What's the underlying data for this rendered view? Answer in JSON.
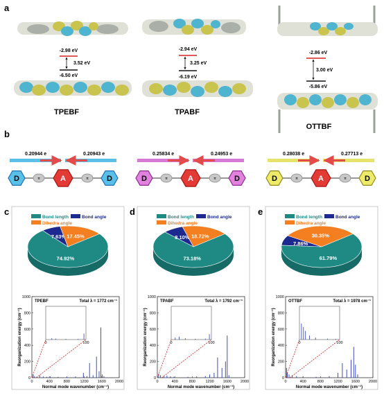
{
  "panel_labels": {
    "a": "a",
    "b": "b",
    "c": "c",
    "d": "d",
    "e": "e"
  },
  "molecules": [
    {
      "name": "TPEBF",
      "lumo": "-2.98 eV",
      "gap": "3.52 eV",
      "homo": "-6.50 eV",
      "charge_left": "0.20944 e",
      "charge_right": "0.20943 e",
      "arrow_color": "#5bc0e8",
      "donor_fill": "#5bc0e8",
      "donor_stroke": "#1f6fb5"
    },
    {
      "name": "TPABF",
      "lumo": "-2.94 eV",
      "gap": "3.25 eV",
      "homo": "-6.19 eV",
      "charge_left": "0.25834 e",
      "charge_right": "0.24953 e",
      "arrow_color": "#d77ad6",
      "donor_fill": "#e082de",
      "donor_stroke": "#8e2a8d"
    },
    {
      "name": "OTTBF",
      "lumo": "-2.86 eV",
      "gap": "3.00 eV",
      "homo": "-5.86 eV",
      "charge_left": "0.28038 e",
      "charge_right": "0.27713 e",
      "arrow_color": "#e6e36a",
      "donor_fill": "#eeea6a",
      "donor_stroke": "#8f8a18"
    }
  ],
  "scheme_labels": {
    "donor": "D",
    "acceptor": "A",
    "pi": "π"
  },
  "legend": {
    "bond_length": "Bond length",
    "bond_angle": "Bond angle",
    "dihedral": "Dihedra angle"
  },
  "colors": {
    "bond_length": "#1f8a84",
    "bond_angle": "#1c2a8f",
    "dihedral": "#f47f20",
    "lumo_line": "#d62020",
    "red_arrow": "#e34a4a",
    "acceptor": "#e23b36"
  },
  "chart_data": [
    {
      "type": "pie",
      "panel": "c",
      "title": "",
      "slices": [
        {
          "name": "Bond length",
          "value": 74.92,
          "label": "74.92%"
        },
        {
          "name": "Bond angle",
          "value": 7.63,
          "label": "7.63%"
        },
        {
          "name": "Dihedra angle",
          "value": 17.45,
          "label": "17.45%"
        }
      ]
    },
    {
      "type": "pie",
      "panel": "d",
      "title": "",
      "slices": [
        {
          "name": "Bond length",
          "value": 73.18,
          "label": "73.18%"
        },
        {
          "name": "Bond angle",
          "value": 8.1,
          "label": "8.10%"
        },
        {
          "name": "Dihedra angle",
          "value": 18.72,
          "label": "18.72%"
        }
      ]
    },
    {
      "type": "pie",
      "panel": "e",
      "title": "",
      "slices": [
        {
          "name": "Bond length",
          "value": 61.79,
          "label": "61.79%"
        },
        {
          "name": "Bond angle",
          "value": 7.86,
          "label": "7.86%"
        },
        {
          "name": "Dihedra angle",
          "value": 30.35,
          "label": "30.35%"
        }
      ]
    },
    {
      "type": "bar",
      "panel": "c",
      "molecule": "TPEBF",
      "total": "Total λ = 1772 cm⁻¹",
      "xlabel": "Normal mode wavenumber (cm⁻¹)",
      "ylabel": "Reorganization energy (cm⁻¹)",
      "xlim": [
        0,
        2000
      ],
      "ylim": [
        0,
        1000
      ],
      "xticks": [
        "0",
        "400",
        "800",
        "1200",
        "1600",
        "2000"
      ],
      "yticks": [
        "0",
        "200",
        "400",
        "600",
        "800",
        "1000"
      ],
      "inset": {
        "xlim": [
          0,
          100
        ],
        "xticks": [
          "0",
          "100"
        ],
        "x": [
          15,
          25,
          50,
          80,
          95
        ],
        "y": [
          40,
          30,
          20,
          20,
          180
        ]
      },
      "x": [
        30,
        60,
        120,
        180,
        260,
        340,
        420,
        600,
        800,
        1000,
        1180,
        1260,
        1320,
        1400,
        1480,
        1540,
        1580,
        1610,
        1650
      ],
      "y": [
        40,
        20,
        15,
        30,
        15,
        10,
        15,
        10,
        10,
        15,
        60,
        20,
        180,
        30,
        260,
        80,
        620,
        40,
        20
      ]
    },
    {
      "type": "bar",
      "panel": "d",
      "molecule": "TPABF",
      "total": "Total λ = 1792 cm⁻¹",
      "xlabel": "Normal mode wavenumber (cm⁻¹)",
      "ylabel": "Reorganization energy (cm⁻¹)",
      "xlim": [
        0,
        2000
      ],
      "ylim": [
        0,
        1000
      ],
      "xticks": [
        "0",
        "400",
        "800",
        "1200",
        "1600",
        "2000"
      ],
      "yticks": [
        "0",
        "200",
        "400",
        "600",
        "800",
        "1000"
      ],
      "inset": {
        "xlim": [
          0,
          100
        ],
        "xticks": [
          "0",
          "100"
        ],
        "x": [
          10,
          20,
          35,
          60,
          85,
          95
        ],
        "y": [
          60,
          90,
          40,
          20,
          30,
          160
        ]
      },
      "x": [
        30,
        70,
        150,
        220,
        300,
        380,
        700,
        900,
        1100,
        1200,
        1300,
        1380,
        1480,
        1560,
        1600,
        1640
      ],
      "y": [
        50,
        30,
        20,
        25,
        15,
        10,
        10,
        15,
        20,
        40,
        60,
        250,
        120,
        200,
        520,
        30
      ]
    },
    {
      "type": "bar",
      "panel": "e",
      "molecule": "OTTBF",
      "total": "Total λ = 1978 cm⁻¹",
      "xlabel": "Normal mode wavenumber (cm⁻¹)",
      "ylabel": "Reorganization energy (cm⁻¹)",
      "xlim": [
        0,
        2000
      ],
      "ylim": [
        0,
        1000
      ],
      "xticks": [
        "0",
        "400",
        "800",
        "1200",
        "1600",
        "2000"
      ],
      "yticks": [
        "0",
        "200",
        "400",
        "600",
        "800",
        "1000"
      ],
      "inset": {
        "xlim": [
          0,
          100
        ],
        "xticks": [
          "0",
          "100"
        ],
        "x": [
          5,
          10,
          15,
          25,
          40,
          70,
          90
        ],
        "y": [
          480,
          380,
          260,
          120,
          60,
          30,
          20
        ]
      },
      "x": [
        20,
        40,
        80,
        150,
        250,
        400,
        700,
        1000,
        1200,
        1300,
        1400,
        1500,
        1560,
        1600,
        1650
      ],
      "y": [
        120,
        60,
        40,
        30,
        20,
        15,
        10,
        20,
        60,
        180,
        100,
        220,
        380,
        160,
        40
      ]
    }
  ]
}
